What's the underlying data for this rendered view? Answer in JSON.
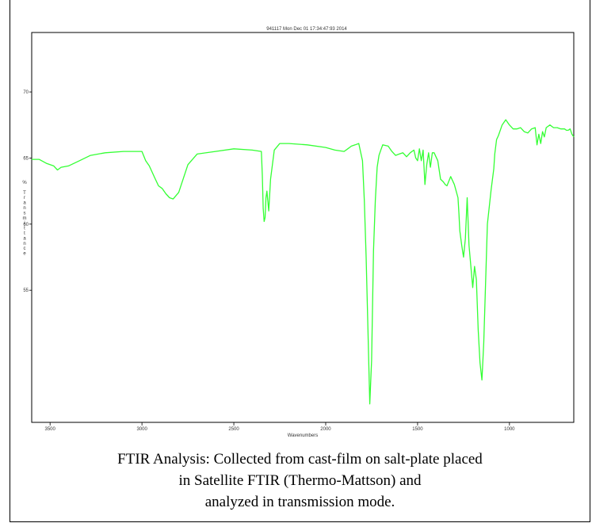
{
  "chart_data": {
    "type": "line",
    "title": "941117  Mon Dec 01 17:34:47:93 2014",
    "xlabel": "Wavenumbers",
    "ylabel": "% Transmittance",
    "xlim": [
      3600,
      650
    ],
    "ylim": [
      45,
      74.5
    ],
    "xticks": [
      {
        "value": 3500,
        "label": "3500"
      },
      {
        "value": 3000,
        "label": "3000"
      },
      {
        "value": 2500,
        "label": "2500"
      },
      {
        "value": 2000,
        "label": "2000"
      },
      {
        "value": 1500,
        "label": "1500"
      },
      {
        "value": 1000,
        "label": "1000"
      }
    ],
    "yticks": [
      {
        "value": 70,
        "label": "70"
      },
      {
        "value": 65,
        "label": "65"
      },
      {
        "value": 60,
        "label": "60"
      },
      {
        "value": 55,
        "label": "55"
      }
    ],
    "grid": false,
    "series": [
      {
        "color": "#33ff33",
        "x": [
          3600,
          3560,
          3520,
          3480,
          3460,
          3440,
          3400,
          3340,
          3280,
          3200,
          3100,
          3010,
          3000,
          2980,
          2960,
          2930,
          2910,
          2890,
          2870,
          2850,
          2830,
          2800,
          2750,
          2700,
          2600,
          2500,
          2400,
          2350,
          2345,
          2340,
          2335,
          2330,
          2325,
          2320,
          2310,
          2300,
          2280,
          2250,
          2200,
          2100,
          2000,
          1950,
          1900,
          1880,
          1860,
          1840,
          1820,
          1800,
          1790,
          1780,
          1770,
          1760,
          1750,
          1740,
          1730,
          1720,
          1710,
          1700,
          1690,
          1660,
          1640,
          1620,
          1600,
          1580,
          1560,
          1540,
          1520,
          1510,
          1500,
          1490,
          1480,
          1470,
          1460,
          1450,
          1440,
          1430,
          1420,
          1410,
          1390,
          1375,
          1360,
          1350,
          1340,
          1320,
          1300,
          1280,
          1275,
          1270,
          1260,
          1250,
          1240,
          1230,
          1220,
          1200,
          1190,
          1180,
          1170,
          1160,
          1150,
          1140,
          1120,
          1100,
          1085,
          1080,
          1070,
          1060,
          1040,
          1020,
          1000,
          980,
          960,
          940,
          920,
          900,
          880,
          860,
          850,
          840,
          830,
          820,
          810,
          800,
          780,
          760,
          740,
          720,
          700,
          690,
          680,
          670,
          660,
          650
        ],
        "y": [
          64.9,
          64.9,
          64.6,
          64.4,
          64.1,
          64.3,
          64.4,
          64.8,
          65.2,
          65.4,
          65.5,
          65.5,
          65.5,
          64.8,
          64.4,
          63.5,
          62.9,
          62.7,
          62.3,
          62.0,
          61.9,
          62.4,
          64.5,
          65.3,
          65.5,
          65.7,
          65.6,
          65.5,
          63.7,
          61.2,
          60.2,
          60.5,
          62.0,
          62.5,
          61.0,
          63.4,
          65.6,
          66.1,
          66.1,
          66.0,
          65.8,
          65.6,
          65.5,
          65.7,
          65.9,
          66.0,
          66.1,
          64.8,
          61.8,
          57.5,
          52.0,
          46.4,
          49.7,
          58.0,
          61.8,
          64.3,
          65.2,
          65.6,
          66.0,
          65.9,
          65.5,
          65.2,
          65.3,
          65.4,
          65.1,
          65.4,
          65.6,
          65.0,
          64.8,
          65.7,
          64.8,
          65.6,
          63.0,
          64.5,
          65.4,
          64.3,
          65.4,
          65.4,
          64.8,
          63.4,
          63.2,
          63.0,
          62.9,
          63.6,
          63.0,
          62.0,
          60.8,
          59.5,
          58.4,
          57.5,
          58.9,
          62.0,
          58.4,
          55.2,
          56.8,
          55.8,
          52.0,
          49.5,
          48.2,
          51.0,
          60.0,
          62.6,
          64.2,
          65.3,
          66.4,
          66.7,
          67.5,
          67.9,
          67.5,
          67.2,
          67.2,
          67.3,
          67.0,
          66.9,
          67.2,
          67.3,
          66.0,
          66.8,
          66.1,
          67.0,
          66.6,
          67.3,
          67.5,
          67.3,
          67.3,
          67.2,
          67.2,
          67.1,
          67.1,
          67.2,
          66.8,
          66.6
        ]
      }
    ]
  },
  "caption": {
    "line1": "FTIR Analysis: Collected from cast-film on salt-plate placed",
    "line2": "in Satellite FTIR (Thermo-Mattson) and",
    "line3": "analyzed in transmission mode."
  }
}
